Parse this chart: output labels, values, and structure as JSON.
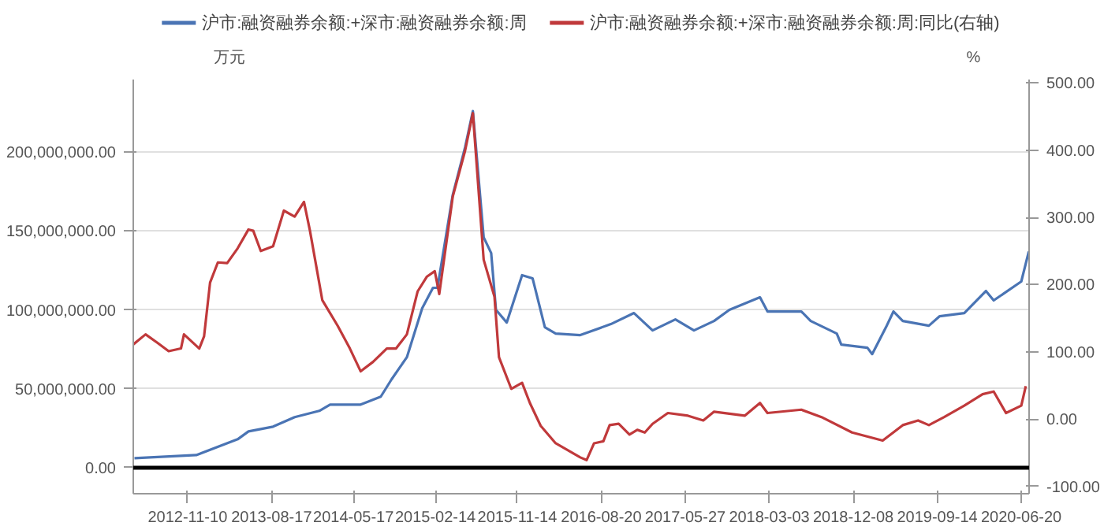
{
  "chart_data": {
    "type": "line",
    "ylabel": "万元",
    "y2label": "%",
    "legend": "top",
    "grid": "y",
    "line_style": "solid",
    "xlim": [
      "2012-05-13",
      "2020-07-16"
    ],
    "xticks": [
      "2012-11-10",
      "2013-08-17",
      "2014-05-17",
      "2015-02-14",
      "2015-11-14",
      "2016-08-20",
      "2017-05-27",
      "2018-03-03",
      "2018-12-08",
      "2019-09-14",
      "2020-06-20"
    ],
    "ylim": [
      -16500000,
      246000000
    ],
    "yticks": [
      {
        "value": 0,
        "label": "0.00"
      },
      {
        "value": 50000000,
        "label": "50,000,000.00"
      },
      {
        "value": 100000000,
        "label": "100,000,000.00"
      },
      {
        "value": 150000000,
        "label": "150,000,000.00"
      },
      {
        "value": 200000000,
        "label": "200,000,000.00"
      }
    ],
    "y2lim": [
      -111,
      505
    ],
    "y2ticks": [
      {
        "value": -100,
        "label": "-100.00"
      },
      {
        "value": 0,
        "label": "0.00"
      },
      {
        "value": 100,
        "label": "100.00"
      },
      {
        "value": 200,
        "label": "200.00"
      },
      {
        "value": 300,
        "label": "300.00"
      },
      {
        "value": 400,
        "label": "400.00"
      },
      {
        "value": 500,
        "label": "500.00"
      }
    ],
    "ref_lines": [
      {
        "axis": "y",
        "value": 0,
        "label": null,
        "color": "#000000"
      }
    ],
    "series": [
      {
        "name": "沪市:融资融券余额:+深市:融资融券余额:周",
        "color": "#4a74b4",
        "x": [
          "2012-05-17",
          "2012-12-09",
          "2013-04-26",
          "2013-06-01",
          "2013-08-22",
          "2013-11-02",
          "2014-01-23",
          "2014-02-28",
          "2014-06-10",
          "2014-08-16",
          "2014-09-21",
          "2014-11-11",
          "2015-01-01",
          "2015-02-06",
          "2015-02-21",
          "2015-04-13",
          "2015-05-24",
          "2015-06-19",
          "2015-07-25",
          "2015-08-19",
          "2015-09-04",
          "2015-10-10",
          "2015-11-30",
          "2016-01-04",
          "2016-02-14",
          "2016-03-21",
          "2016-06-11",
          "2016-09-21",
          "2016-12-07",
          "2017-02-07",
          "2017-04-24",
          "2017-06-25",
          "2017-08-31",
          "2017-10-21",
          "2018-01-31",
          "2018-02-25",
          "2018-06-18",
          "2018-07-19",
          "2018-10-14",
          "2018-10-29",
          "2019-01-24",
          "2019-02-09",
          "2019-03-27",
          "2019-04-21",
          "2019-05-22",
          "2019-08-17",
          "2019-09-22",
          "2019-12-13",
          "2020-02-23",
          "2020-03-20",
          "2020-06-20",
          "2020-07-15"
        ],
        "values": [
          6000000,
          8000000,
          18000000,
          23000000,
          26000000,
          32000000,
          36000000,
          40000000,
          40000000,
          45000000,
          56000000,
          70000000,
          101000000,
          114000000,
          114000000,
          173000000,
          203000000,
          226000000,
          146000000,
          136000000,
          100000000,
          92000000,
          122000000,
          120000000,
          89000000,
          85000000,
          84000000,
          91000000,
          98000000,
          87000000,
          94000000,
          87000000,
          93000000,
          100000000,
          108000000,
          99000000,
          99000000,
          93000000,
          85000000,
          78000000,
          76000000,
          72000000,
          89000000,
          99000000,
          93000000,
          90000000,
          96000000,
          98000000,
          112000000,
          106000000,
          118000000,
          137000000
        ]
      },
      {
        "name": "沪市:融资融券余额:+深市:融资融券余额:周:同比(右轴)",
        "color": "#c0393b",
        "axis": "y2",
        "x": [
          "2012-05-13",
          "2012-06-23",
          "2012-08-03",
          "2012-09-08",
          "2012-10-19",
          "2012-10-29",
          "2012-12-19",
          "2013-01-04",
          "2013-01-24",
          "2013-02-19",
          "2013-03-22",
          "2013-04-26",
          "2013-06-01",
          "2013-06-17",
          "2013-07-12",
          "2013-08-22",
          "2013-09-27",
          "2013-11-02",
          "2013-12-03",
          "2013-12-23",
          "2014-02-02",
          "2014-03-25",
          "2014-05-05",
          "2014-06-10",
          "2014-07-21",
          "2014-09-05",
          "2014-10-06",
          "2014-11-11",
          "2014-12-17",
          "2015-01-17",
          "2015-02-12",
          "2015-02-27",
          "2015-04-13",
          "2015-05-24",
          "2015-06-19",
          "2015-07-25",
          "2015-08-30",
          "2015-09-14",
          "2015-10-25",
          "2015-11-30",
          "2015-12-26",
          "2016-01-31",
          "2016-03-21",
          "2016-04-06",
          "2016-06-11",
          "2016-07-02",
          "2016-07-27",
          "2016-08-27",
          "2016-09-17",
          "2016-10-17",
          "2016-11-22",
          "2016-12-18",
          "2017-01-12",
          "2017-02-07",
          "2017-03-30",
          "2017-06-05",
          "2017-07-26",
          "2017-08-31",
          "2017-12-11",
          "2018-01-31",
          "2018-02-25",
          "2018-06-18",
          "2018-08-24",
          "2018-12-04",
          "2019-03-16",
          "2019-05-22",
          "2019-07-12",
          "2019-08-17",
          "2019-10-07",
          "2019-12-13",
          "2020-02-12",
          "2020-03-20",
          "2020-04-30",
          "2020-06-20",
          "2020-07-05"
        ],
        "values": [
          111,
          126,
          113,
          101,
          105,
          126,
          105,
          123,
          203,
          233,
          232,
          254,
          282,
          280,
          250,
          257,
          310,
          301,
          323,
          280,
          177,
          139,
          105,
          71,
          85,
          105,
          105,
          126,
          190,
          212,
          220,
          186,
          331,
          399,
          455,
          237,
          182,
          92,
          45,
          54,
          24,
          -10,
          -36,
          -40,
          -57,
          -61,
          -36,
          -33,
          -9,
          -7,
          -23,
          -16,
          -20,
          -7,
          9,
          5,
          -2,
          11,
          5,
          24,
          9,
          14,
          3,
          -20,
          -32,
          -9,
          -2,
          -9,
          3,
          20,
          37,
          41,
          9,
          20,
          49
        ]
      }
    ]
  }
}
